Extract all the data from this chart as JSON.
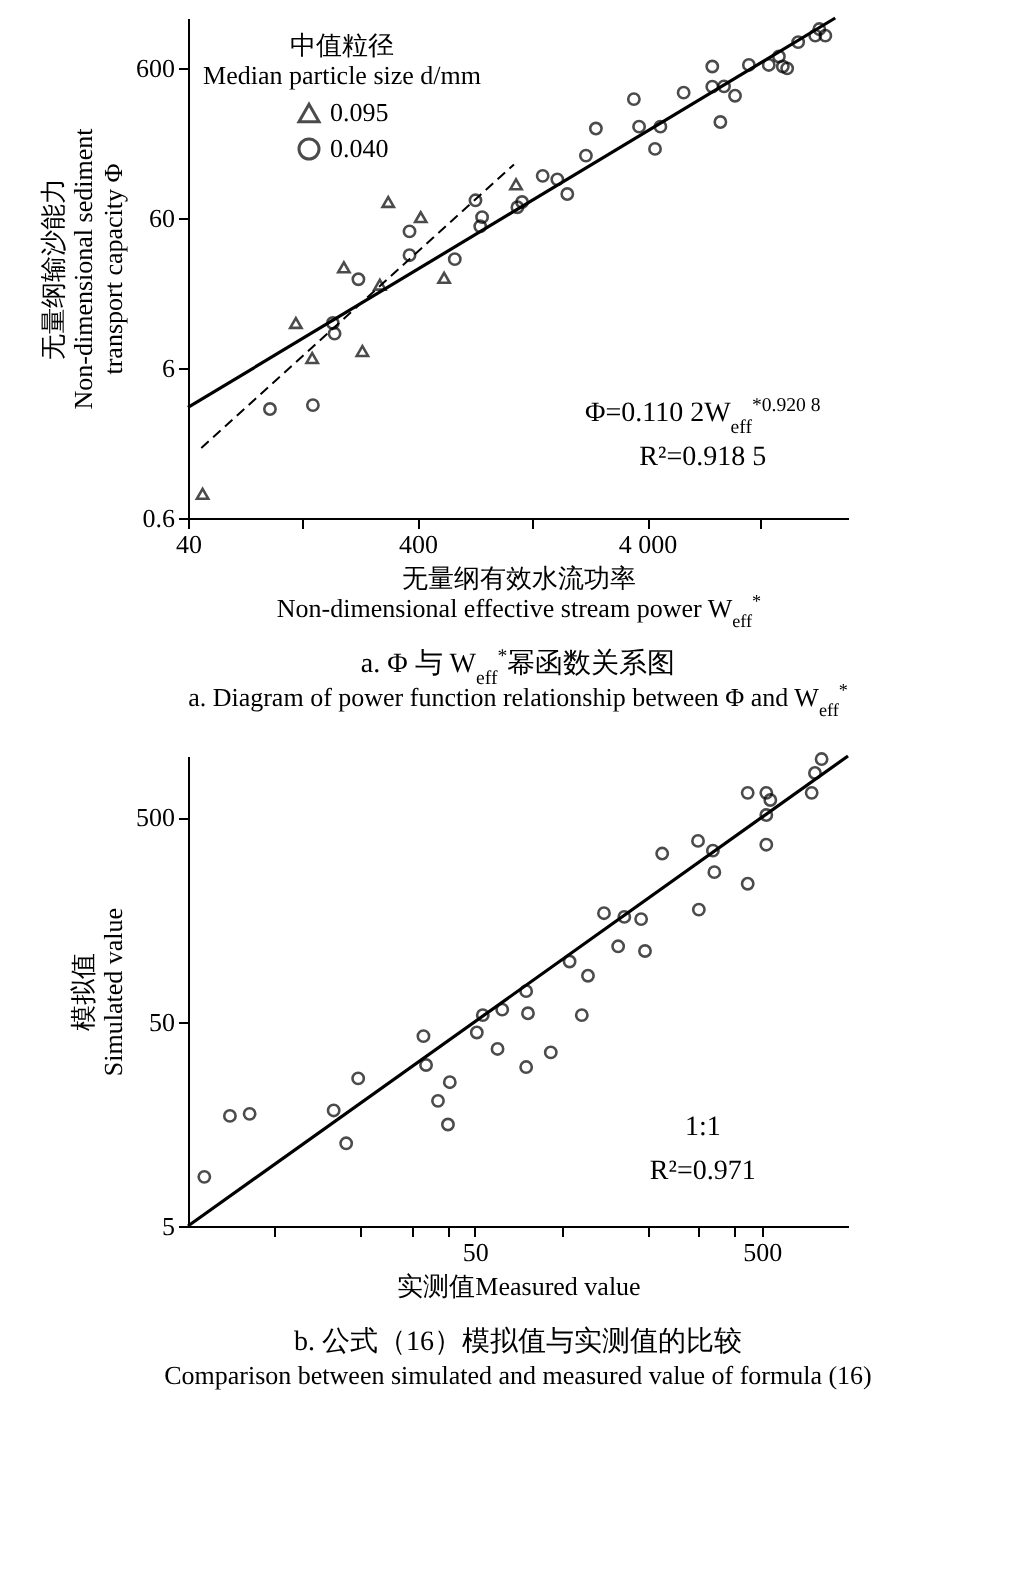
{
  "chart_data": [
    {
      "type": "scatter",
      "title": "a. Φ 与 W$_{eff}$$^{*}$幂函数关系图",
      "subtitle": "a. Diagram of power function relationship between Φ and W$_{eff}$$^{*}$",
      "xlabel": "无量纲有效水流功率\nNon-dimensional effective stream power W$_{eff}$$^{*}$",
      "ylabel": "无量纲输沙能力\nNon-dimensional sediment\ntransport capacity Φ",
      "legend_title": "中值粒径\nMedian particle size d/mm",
      "legend": "top left",
      "log": "xy",
      "xlim": [
        40,
        30000
      ],
      "xticks": [
        40,
        {
          "value": 125,
          "label": null
        },
        400,
        {
          "value": 1250,
          "label": null
        },
        {
          "value": 4000,
          "label": "4 000"
        },
        {
          "value": 12500,
          "label": null
        }
      ],
      "ylim": [
        0.6,
        1300
      ],
      "yticks": [
        0.6,
        6,
        60,
        600
      ],
      "annotations": [
        "Φ=0.110 2W$_{eff}$$^{*0.920 8}$",
        "R²=0.918 5"
      ],
      "series": [
        {
          "name": "0.095",
          "color": "#000000",
          "marker": "triangle",
          "x": [
            46.3,
            118,
            139,
            191,
            230,
            274,
            298,
            413,
            522,
            1074
          ],
          "values": [
            0.87,
            12.0,
            7.0,
            28.2,
            7.8,
            21.6,
            77,
            61,
            24,
            101
          ]
        },
        {
          "name": "0.040",
          "color": "#000000",
          "marker": "circle",
          "x": [
            91,
            140,
            171,
            174,
            221,
            369,
            369,
            581,
            715,
            764,
            750,
            1089,
            1141,
            1403,
            1625,
            1796,
            2165,
            2393,
            3502,
            3690,
            4330,
            4570,
            5770,
            7690,
            7690,
            8340,
            8650,
            9660,
            11100,
            13550,
            15000,
            15600,
            16300,
            18200,
            21600,
            23900,
            22500
          ],
          "values": [
            3.2,
            3.4,
            12.0,
            10.2,
            23.5,
            34,
            49,
            32,
            79,
            61,
            53,
            71,
            77,
            115,
            109,
            87,
            157,
            238,
            374,
            245,
            174,
            245,
            413,
            617,
            453,
            263,
            455,
            394,
            632,
            632,
            720,
            617,
            600,
            898,
            991,
            991,
            1097
          ]
        },
        {
          "type": "line",
          "color": "#000000",
          "line_style": "solid",
          "x": [
            40,
            26400
          ],
          "values": [
            3.28,
            1300
          ]
        },
        {
          "type": "line",
          "color": "#000000",
          "line_style": "dashed",
          "x": [
            45.7,
            1052
          ],
          "values": [
            1.76,
            137
          ]
        }
      ]
    },
    {
      "type": "scatter",
      "title": "b. 公式（16）模拟值与实测值的比较",
      "subtitle": "Comparison between simulated and measured value of formula (16)",
      "xlabel": "实测值Measured value",
      "ylabel": "模拟值\nSimulated value",
      "log": "xy",
      "xlim": [
        5,
        1000
      ],
      "xticks": [
        {
          "value": 10,
          "label": null
        },
        {
          "value": 20,
          "label": null
        },
        {
          "value": 30,
          "label": null
        },
        {
          "value": 40,
          "label": null
        },
        50,
        {
          "value": 100,
          "label": null
        },
        {
          "value": 200,
          "label": null
        },
        {
          "value": 300,
          "label": null
        },
        {
          "value": 400,
          "label": null
        },
        500
      ],
      "ylim": [
        5,
        1000
      ],
      "yticks": [
        5,
        50,
        500
      ],
      "annotations": [
        "1:1",
        "R²=0.971"
      ],
      "series": [
        {
          "color": "#000000",
          "marker": "circle",
          "x": [
            5.7,
            7.0,
            8.2,
            16.1,
            17.8,
            19.6,
            33.1,
            33.8,
            37.2,
            40.3,
            40.9,
            50.8,
            53.3,
            60,
            62.3,
            75.5,
            76.6,
            75.5,
            92,
            107,
            118,
            124,
            141,
            158,
            166,
            190,
            196,
            225,
            300,
            302,
            338,
            342,
            447,
            447,
            519,
            519,
            519,
            536,
            747,
            767,
            809
          ],
          "values": [
            8.7,
            17.3,
            17.7,
            18.4,
            12.7,
            26.4,
            42.5,
            30.7,
            20.5,
            15.7,
            25.3,
            44.3,
            53.9,
            36.8,
            57.3,
            70.6,
            55,
            30,
            35.4,
            98.6,
            53.9,
            84,
            170,
            117,
            163,
            159,
            111,
            333,
            384,
            177,
            344,
            270,
            660,
            237,
            660,
            514,
            368,
            609,
            660,
            826,
            966
          ]
        },
        {
          "type": "line",
          "color": "#000000",
          "line_style": "solid",
          "x": [
            5,
            1000
          ],
          "values": [
            5,
            1000
          ]
        }
      ]
    }
  ]
}
